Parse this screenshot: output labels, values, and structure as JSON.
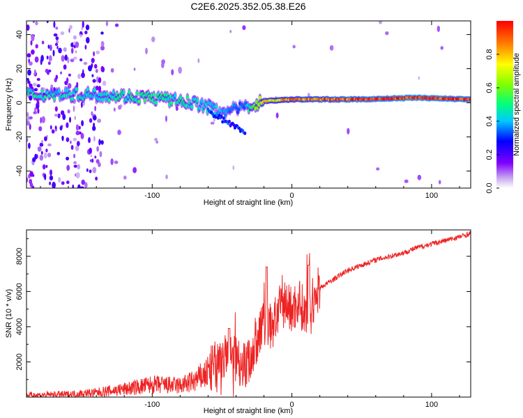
{
  "chart_data": [
    {
      "type": "heatmap",
      "title": "C2E6.2025.352.05.38.E26",
      "xlabel": "Height of straight line (km)",
      "ylabel": "Frequency (Hz)",
      "xlim": [
        -190,
        128
      ],
      "ylim": [
        -50,
        48
      ],
      "xticks": [
        -100,
        0,
        100
      ],
      "yticks": [
        -40,
        -20,
        0,
        20,
        40
      ],
      "colorbar": {
        "label": "Normalized spectral amplitude",
        "range": [
          0,
          1
        ],
        "ticks": [
          "0.0",
          "0.2",
          "0.4",
          "0.6",
          "0.8"
        ]
      },
      "description_points": [
        {
          "x": -190,
          "freq": 5,
          "amp": 0.45
        },
        {
          "x": -140,
          "freq": 5,
          "amp": 0.45
        },
        {
          "x": -100,
          "freq": 3,
          "amp": 0.5
        },
        {
          "x": -70,
          "freq": 0,
          "amp": 0.45
        },
        {
          "x": -50,
          "freq": -5,
          "amp": 0.4
        },
        {
          "x": -35,
          "freq": -3,
          "amp": 0.35
        },
        {
          "x": -20,
          "freq": 1,
          "amp": 0.75
        },
        {
          "x": 0,
          "freq": 2,
          "amp": 0.85
        },
        {
          "x": 50,
          "freq": 2,
          "amp": 0.95
        },
        {
          "x": 90,
          "freq": 3,
          "amp": 1.0
        },
        {
          "x": 128,
          "freq": 2,
          "amp": 0.95
        }
      ]
    },
    {
      "type": "line",
      "xlabel": "Height of straight line (km)",
      "ylabel": "SNR (10 * v/v)",
      "xlim": [
        -190,
        128
      ],
      "ylim": [
        0,
        9500
      ],
      "xticks": [
        -100,
        0,
        100
      ],
      "yticks": [
        2000,
        4000,
        6000,
        8000
      ],
      "series": [
        {
          "name": "SNR",
          "color": "#ee2222",
          "x": [
            -190,
            -160,
            -140,
            -120,
            -100,
            -80,
            -70,
            -60,
            -50,
            -40,
            -35,
            -30,
            -25,
            -20,
            -15,
            -10,
            -5,
            0,
            5,
            10,
            15,
            20,
            30,
            40,
            50,
            60,
            70,
            80,
            90,
            100,
            110,
            120,
            128
          ],
          "values": [
            100,
            150,
            250,
            450,
            700,
            650,
            900,
            1400,
            2200,
            2300,
            1800,
            2100,
            3200,
            4300,
            3900,
            4800,
            5400,
            4900,
            5500,
            4600,
            5400,
            6200,
            6700,
            7200,
            7500,
            7800,
            8000,
            8200,
            8500,
            8700,
            8900,
            9100,
            9300
          ]
        }
      ],
      "annotations": [
        {
          "x": -18,
          "peak": 7400
        },
        {
          "x": 12,
          "peak": 7500
        },
        {
          "x": -45,
          "peak": 3900
        }
      ]
    }
  ]
}
